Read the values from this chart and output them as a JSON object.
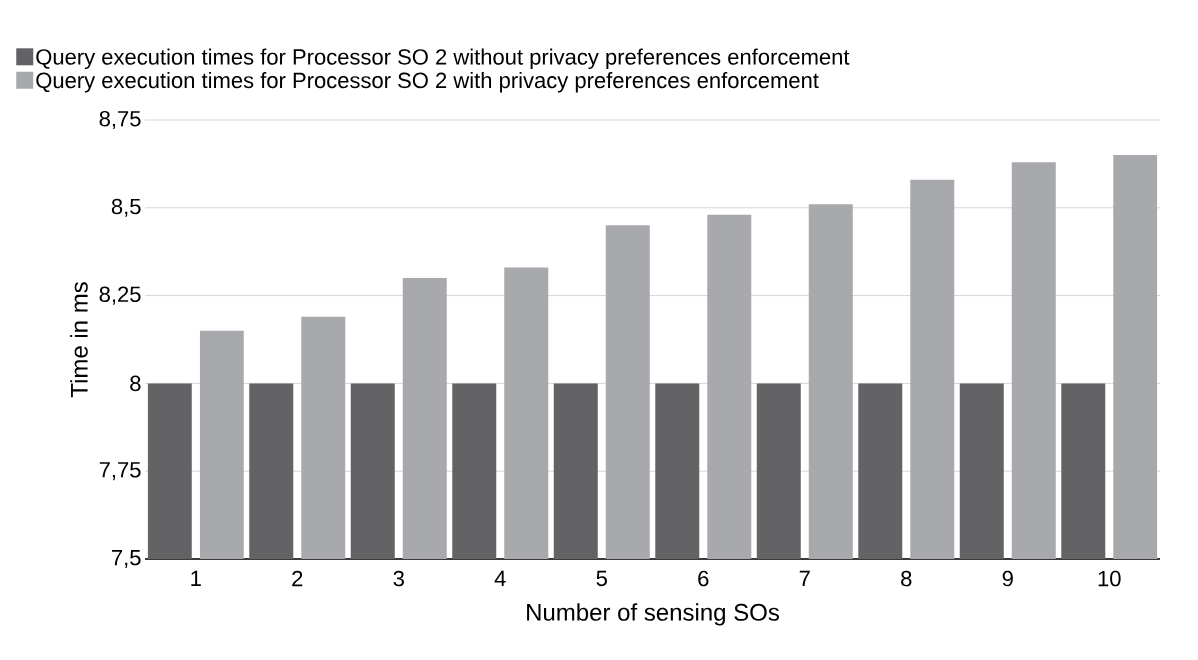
{
  "chart_data": {
    "type": "bar",
    "xlabel": "Number of sensing SOs",
    "ylabel": "Time in ms",
    "categories": [
      "1",
      "2",
      "3",
      "4",
      "5",
      "6",
      "7",
      "8",
      "9",
      "10"
    ],
    "series": [
      {
        "name": "Query execution times for  Processor SO  2 without privacy preferences enforcement",
        "color": "#636366",
        "values": [
          8,
          8,
          8,
          8,
          8,
          8,
          8,
          8,
          8,
          8
        ]
      },
      {
        "name": "Query execution times for  Processor SO  2 with privacy preferences enforcement",
        "color": "#a8a9ad",
        "values": [
          8.15,
          8.19,
          8.3,
          8.33,
          8.45,
          8.48,
          8.51,
          8.58,
          8.63,
          8.65
        ]
      }
    ],
    "ylim": [
      7.5,
      8.75
    ],
    "yticks": [
      {
        "value": 7.5,
        "label": "7,5"
      },
      {
        "value": 7.75,
        "label": "7,75"
      },
      8,
      {
        "value": 8.25,
        "label": "8,25"
      },
      {
        "value": 8.5,
        "label": "8,5"
      },
      {
        "value": 8.75,
        "label": "8,75"
      }
    ],
    "grid": "y",
    "legend": "top"
  }
}
